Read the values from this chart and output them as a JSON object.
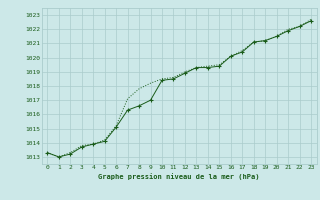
{
  "title": "Graphe pression niveau de la mer (hPa)",
  "bg_color": "#cce8e8",
  "plot_bg_color": "#cce8e8",
  "line_color": "#1a5c1a",
  "grid_color": "#aacccc",
  "ylim": [
    1012.5,
    1023.5
  ],
  "xlim": [
    -0.5,
    23.5
  ],
  "yticks": [
    1013,
    1014,
    1015,
    1016,
    1017,
    1018,
    1019,
    1020,
    1021,
    1022,
    1023
  ],
  "xticks": [
    0,
    1,
    2,
    3,
    4,
    5,
    6,
    7,
    8,
    9,
    10,
    11,
    12,
    13,
    14,
    15,
    16,
    17,
    18,
    19,
    20,
    21,
    22,
    23
  ],
  "line1_x": [
    0,
    1,
    2,
    3,
    4,
    5,
    6,
    7,
    8,
    9,
    10,
    11,
    12,
    13,
    14,
    15,
    16,
    17,
    18,
    19,
    20,
    21,
    22,
    23
  ],
  "line1_y": [
    1013.3,
    1013.0,
    1013.2,
    1013.7,
    1013.9,
    1014.1,
    1015.1,
    1016.3,
    1016.6,
    1017.0,
    1018.4,
    1018.5,
    1018.9,
    1019.3,
    1019.3,
    1019.4,
    1020.1,
    1020.4,
    1021.1,
    1021.2,
    1021.5,
    1021.9,
    1022.2,
    1022.6
  ],
  "line2_x": [
    0,
    1,
    2,
    3,
    4,
    5,
    6,
    7,
    8,
    9,
    10,
    11,
    12,
    13,
    14,
    15,
    16,
    17,
    18,
    19,
    20,
    21,
    22,
    23
  ],
  "line2_y": [
    1013.3,
    1013.0,
    1013.3,
    1013.8,
    1013.9,
    1014.2,
    1015.2,
    1017.1,
    1017.8,
    1018.2,
    1018.5,
    1018.6,
    1019.0,
    1019.3,
    1019.4,
    1019.5,
    1020.1,
    1020.5,
    1021.1,
    1021.2,
    1021.5,
    1022.0,
    1022.2,
    1022.7
  ]
}
